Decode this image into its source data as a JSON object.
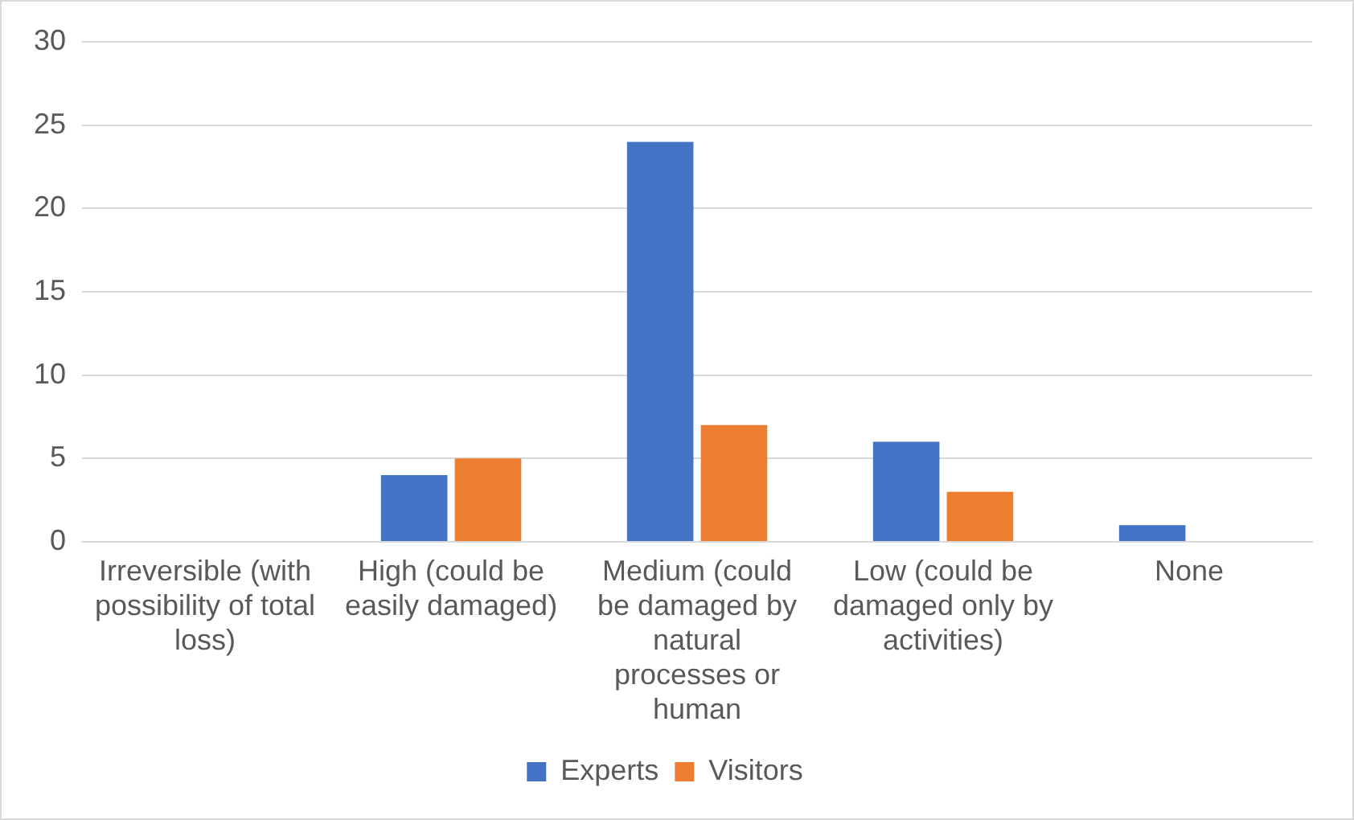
{
  "chart_data": {
    "type": "bar",
    "categories": [
      "Irreversible (with possibility of total loss)",
      "High (could be easily damaged)",
      "Medium (could be damaged by natural processes or human",
      "Low (could be damaged only by activities)",
      "None"
    ],
    "series": [
      {
        "name": "Experts",
        "color": "#4472c4",
        "values": [
          0,
          4,
          24,
          6,
          1
        ]
      },
      {
        "name": "Visitors",
        "color": "#ed7d31",
        "values": [
          0,
          5,
          7,
          3,
          0
        ]
      }
    ],
    "ylim": [
      0,
      30
    ],
    "yticks": [
      0,
      5,
      10,
      15,
      20,
      25,
      30
    ],
    "grid": "y",
    "legend": "bottom"
  }
}
